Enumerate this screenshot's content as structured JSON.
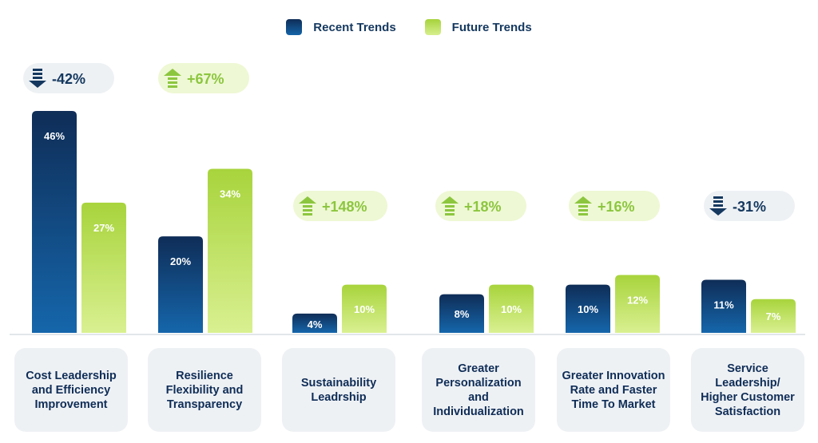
{
  "legend": {
    "recent": {
      "label": "Recent Trends",
      "color": "#123b6e"
    },
    "future": {
      "label": "Future Trends",
      "color": "#b6dc4f"
    }
  },
  "chart_data": {
    "type": "bar",
    "categories": [
      "Cost Leadership\nand Efficiency\nImprovement",
      "Resilience\nFlexibility and\nTransparency",
      "Sustainability\nLeadrship",
      "Greater\nPersonalization and\nIndividualization",
      "Greater Innovation\nRate and Faster\nTime To Market",
      "Service Leadership/\nHigher Customer\nSatisfaction"
    ],
    "series": [
      {
        "name": "Recent Trends",
        "values": [
          46,
          20,
          4,
          8,
          10,
          11
        ],
        "labels": [
          "46%",
          "20%",
          "4%",
          "8%",
          "10%",
          "11%"
        ]
      },
      {
        "name": "Future Trends",
        "values": [
          27,
          34,
          10,
          10,
          12,
          7
        ],
        "labels": [
          "27%",
          "34%",
          "10%",
          "10%",
          "12%",
          "7%"
        ]
      }
    ],
    "changes": [
      {
        "text": "-42%",
        "direction": "down"
      },
      {
        "text": "+67%",
        "direction": "up"
      },
      {
        "text": "+148%",
        "direction": "up"
      },
      {
        "text": "+18%",
        "direction": "up"
      },
      {
        "text": "+16%",
        "direction": "up"
      },
      {
        "text": "-31%",
        "direction": "down"
      }
    ],
    "ylim": [
      0,
      46
    ],
    "colors": {
      "recent_top": "#0f2d57",
      "recent_bottom": "#1566ab",
      "future_top": "#a8d43c",
      "future_bottom": "#d9f091",
      "up_pill_bg": "#eef8d4",
      "up_text": "#8cc63f",
      "down_pill_bg": "#eef1f4",
      "down_text": "#14385f"
    }
  }
}
